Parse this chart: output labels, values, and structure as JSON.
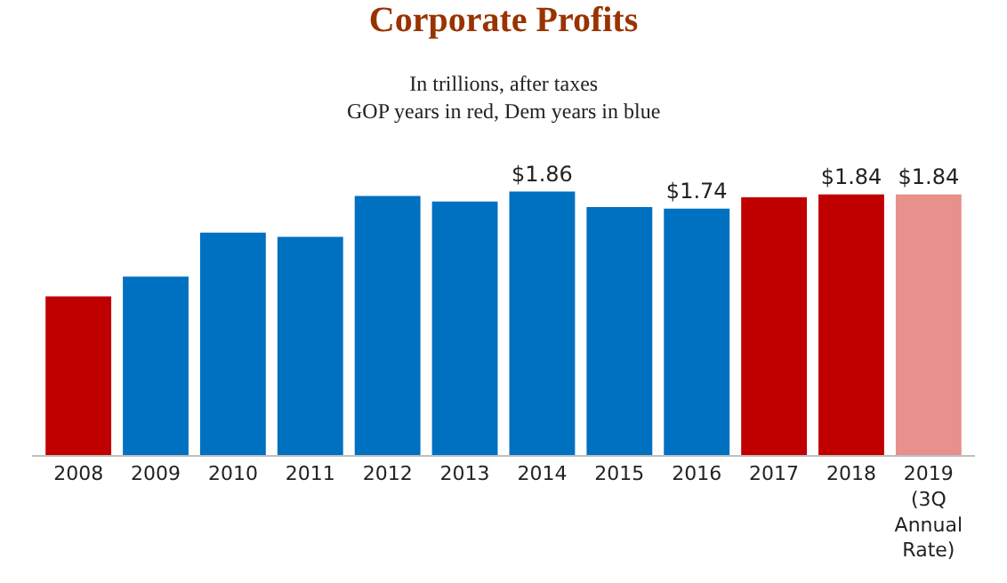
{
  "chart_data": {
    "type": "bar",
    "title": "Corporate Profits",
    "subtitle": "In trillions, after taxes\nGOP years in red, Dem years in blue",
    "categories": [
      "2008",
      "2009",
      "2010",
      "2011",
      "2012",
      "2013",
      "2014",
      "2015",
      "2016",
      "2017",
      "2018",
      "2019\n(3Q\nAnnual\nRate)"
    ],
    "values": [
      1.12,
      1.26,
      1.57,
      1.54,
      1.83,
      1.79,
      1.86,
      1.75,
      1.74,
      1.82,
      1.84,
      1.84
    ],
    "colors": [
      "#c00000",
      "#0070c0",
      "#0070c0",
      "#0070c0",
      "#0070c0",
      "#0070c0",
      "#0070c0",
      "#0070c0",
      "#0070c0",
      "#c00000",
      "#c00000",
      "#e8908c"
    ],
    "value_labels": [
      null,
      null,
      null,
      null,
      null,
      null,
      "$1.86",
      null,
      "$1.74",
      null,
      "$1.84",
      "$1.84"
    ],
    "legend": false
  }
}
